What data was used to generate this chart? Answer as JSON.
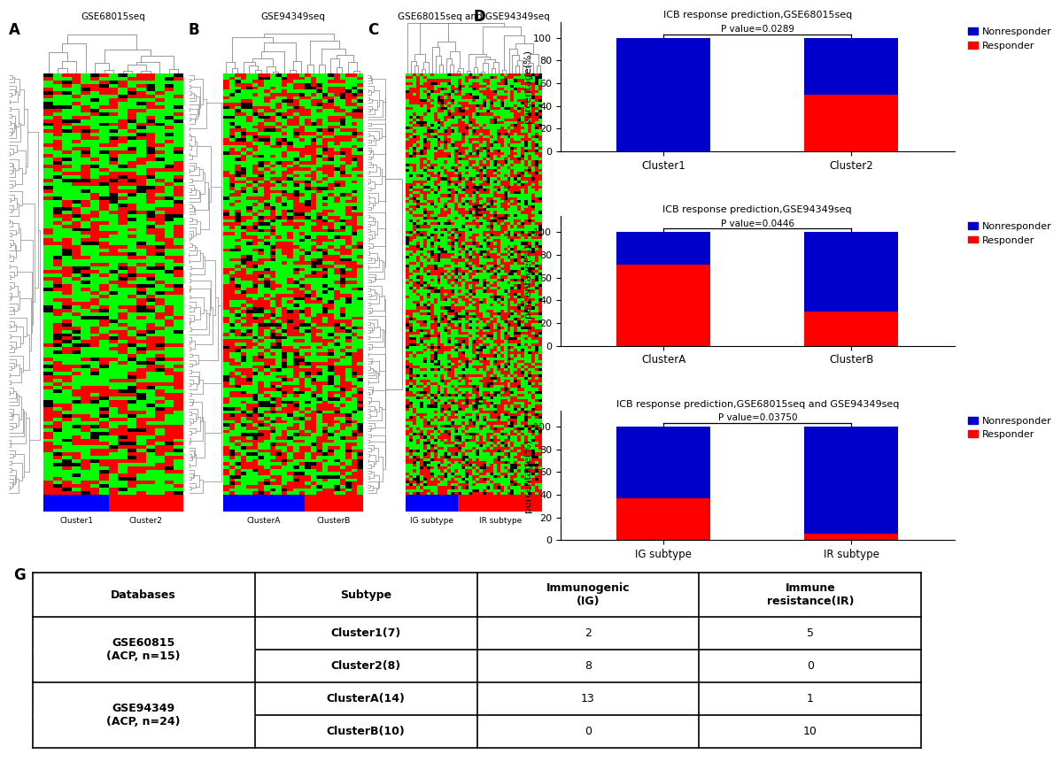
{
  "panel_D": {
    "title": "ICB response prediction,GSE68015seq",
    "categories": [
      "Cluster1",
      "Cluster2"
    ],
    "responder": [
      0,
      50
    ],
    "nonresponder": [
      100,
      50
    ],
    "pvalue": "P value=0.0289"
  },
  "panel_E": {
    "title": "ICB response prediction,GSE94349seq",
    "categories": [
      "ClusterA",
      "ClusterB"
    ],
    "responder": [
      71,
      30
    ],
    "nonresponder": [
      29,
      70
    ],
    "pvalue": "P value=0.0446"
  },
  "panel_F": {
    "title": "ICB response prediction,GSE68015seq and GSE94349seq",
    "categories": [
      "IG subtype",
      "IR subtype"
    ],
    "responder": [
      37,
      6
    ],
    "nonresponder": [
      63,
      94
    ],
    "pvalue": "P value=0.03750"
  },
  "heatmaps": [
    {
      "title": "GSE68015seq",
      "label": "A",
      "n_genes": 120,
      "n_samples": 15,
      "bar_labels": [
        "Cluster1",
        "Cluster2"
      ],
      "bar_split": 7,
      "seed": 101,
      "dend_seed_col": 11,
      "dend_seed_row": 21
    },
    {
      "title": "GSE94349seq",
      "label": "B",
      "n_genes": 130,
      "n_samples": 24,
      "bar_labels": [
        "ClusterA",
        "ClusterB"
      ],
      "bar_split": 14,
      "seed": 202,
      "dend_seed_col": 12,
      "dend_seed_row": 22
    },
    {
      "title": "GSE68015seq and GSE94349seq",
      "label": "C",
      "n_genes": 150,
      "n_samples": 39,
      "bar_labels": [
        "IG subtype",
        "IR subtype"
      ],
      "bar_split": 15,
      "seed": 303,
      "dend_seed_col": 13,
      "dend_seed_row": 23
    }
  ],
  "table_header": [
    "Databases",
    "Subtype",
    "Immunogenic\n(IG)",
    "Immune\nresistance(IR)"
  ],
  "table_rows": [
    [
      "GSE60815\n(ACP, n=15)",
      "Cluster1(7)",
      "2",
      "5"
    ],
    [
      "",
      "Cluster2(8)",
      "8",
      "0"
    ],
    [
      "GSE94349\n(ACP, n=24)",
      "ClusterA(14)",
      "13",
      "1"
    ],
    [
      "",
      "ClusterB(10)",
      "0",
      "10"
    ]
  ],
  "bar_color_nonresponder": "#0000CC",
  "bar_color_responder": "#FF0000",
  "heatmap_color_green": "#00FF00",
  "heatmap_color_red": "#FF0000",
  "heatmap_color_black": "#000000",
  "dendrogram_color": "#888888",
  "cluster_bar_blue": "#0000FF",
  "cluster_bar_red": "#FF0000"
}
